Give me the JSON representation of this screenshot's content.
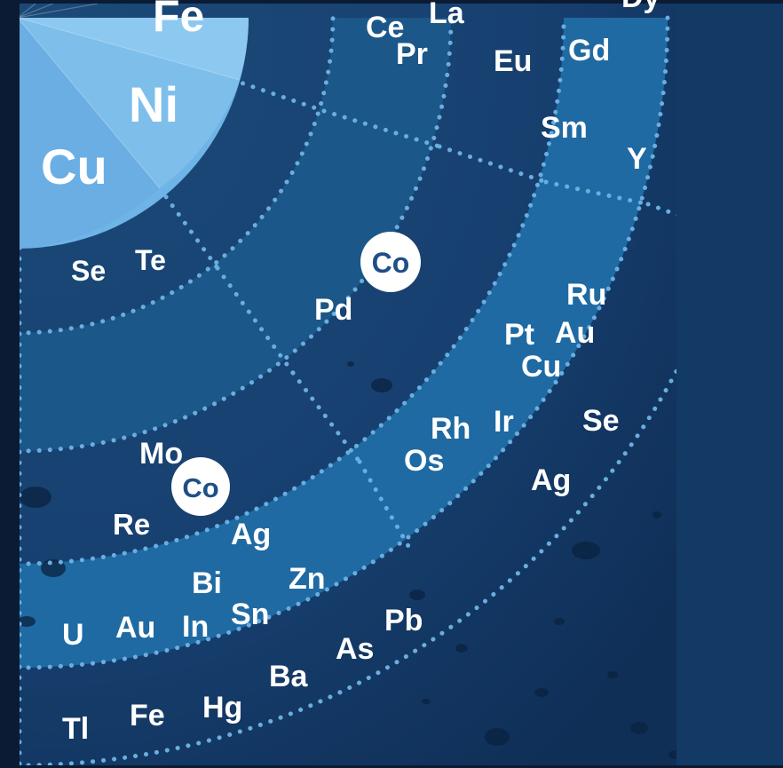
{
  "colors": {
    "background": "#0b1b33",
    "panel": "#17406b",
    "ring_light": "#1f6aa3",
    "core": "#6fb4e6",
    "core_light": "#8cc8f0",
    "dots": "#6aaee0",
    "badge_bg": "#ffffff",
    "badge_text": "#1e4f86",
    "label": "#ffffff"
  },
  "core_labels": [
    {
      "id": "fe",
      "text": "Fe"
    },
    {
      "id": "ni",
      "text": "Ni"
    },
    {
      "id": "cu",
      "text": "Cu"
    }
  ],
  "badges": [
    {
      "id": "co-1",
      "text": "Co"
    },
    {
      "id": "co-2",
      "text": "Co"
    }
  ],
  "ring1_labels": [
    {
      "id": "se-1",
      "text": "Se"
    },
    {
      "id": "te",
      "text": "Te"
    },
    {
      "id": "ce",
      "text": "Ce"
    },
    {
      "id": "la",
      "text": "La"
    },
    {
      "id": "pr",
      "text": "Pr"
    }
  ],
  "ring2_labels": [
    {
      "id": "pd",
      "text": "Pd"
    },
    {
      "id": "mo",
      "text": "Mo"
    },
    {
      "id": "re",
      "text": "Re"
    },
    {
      "id": "ag-1",
      "text": "Ag"
    }
  ],
  "ring3_labels": [
    {
      "id": "eu",
      "text": "Eu"
    },
    {
      "id": "gd",
      "text": "Gd"
    },
    {
      "id": "sm",
      "text": "Sm"
    },
    {
      "id": "y",
      "text": "Y"
    },
    {
      "id": "dy",
      "text": "Dy"
    },
    {
      "id": "rh",
      "text": "Rh"
    },
    {
      "id": "ir",
      "text": "Ir"
    },
    {
      "id": "os",
      "text": "Os"
    },
    {
      "id": "bi",
      "text": "Bi"
    },
    {
      "id": "zn",
      "text": "Zn"
    },
    {
      "id": "au-1",
      "text": "Au"
    },
    {
      "id": "in",
      "text": "In"
    },
    {
      "id": "sn",
      "text": "Sn"
    },
    {
      "id": "u",
      "text": "U"
    }
  ],
  "ring4_labels": [
    {
      "id": "ru",
      "text": "Ru"
    },
    {
      "id": "pt",
      "text": "Pt"
    },
    {
      "id": "au-2",
      "text": "Au"
    },
    {
      "id": "cu-2",
      "text": "Cu"
    },
    {
      "id": "se-2",
      "text": "Se"
    },
    {
      "id": "ag-2",
      "text": "Ag"
    },
    {
      "id": "pb",
      "text": "Pb"
    },
    {
      "id": "as",
      "text": "As"
    },
    {
      "id": "ba",
      "text": "Ba"
    },
    {
      "id": "hg",
      "text": "Hg"
    },
    {
      "id": "fe-2",
      "text": "Fe"
    },
    {
      "id": "tl",
      "text": "Tl"
    }
  ]
}
